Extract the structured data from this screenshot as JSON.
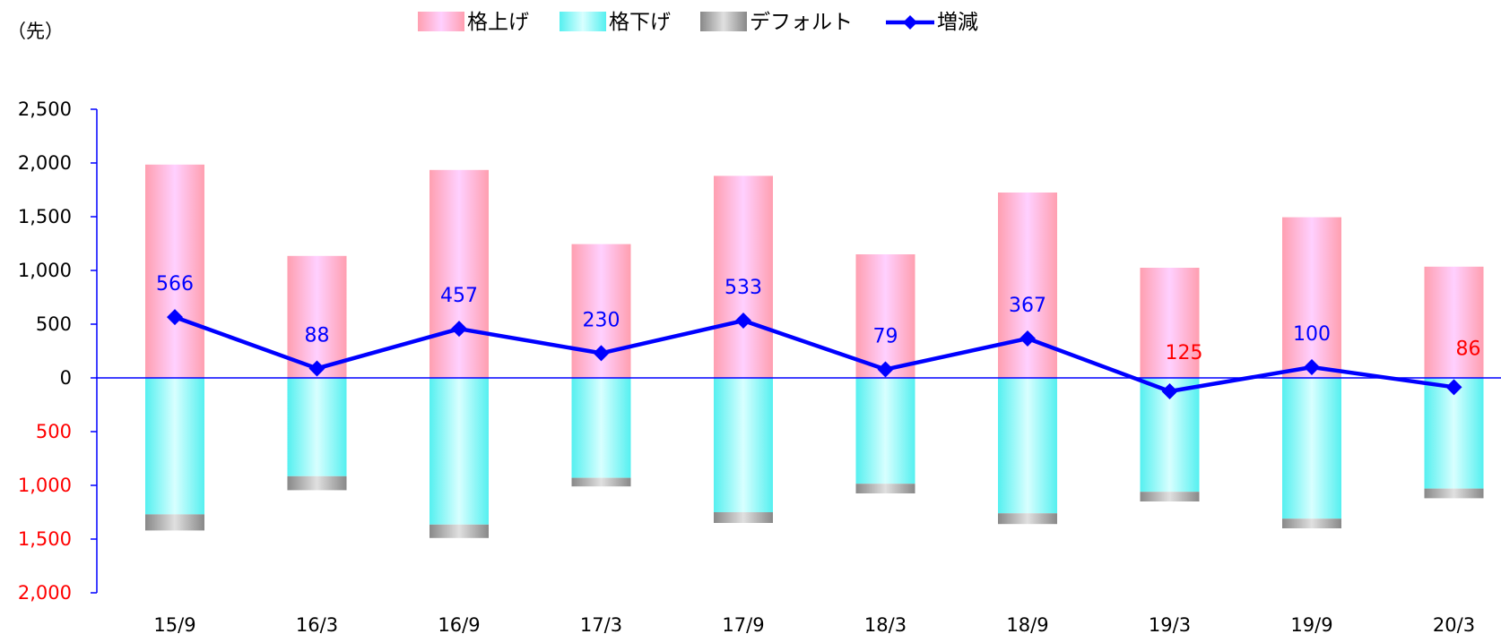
{
  "chart_data": {
    "type": "bar",
    "stacked": true,
    "unit_label": "（先）",
    "categories": [
      "15/9",
      "16/3",
      "16/9",
      "17/3",
      "17/9",
      "18/3",
      "18/9",
      "19/3",
      "19/9",
      "20/3"
    ],
    "series": [
      {
        "name": "格上げ",
        "kind": "bar",
        "values": [
          1985,
          1135,
          1935,
          1245,
          1880,
          1150,
          1725,
          1025,
          1495,
          1035
        ],
        "colors": [
          "#ff9fb0",
          "#ffd0ff"
        ]
      },
      {
        "name": "格下げ",
        "kind": "bar",
        "values": [
          -1270,
          -915,
          -1365,
          -930,
          -1250,
          -985,
          -1260,
          -1060,
          -1310,
          -1030
        ],
        "colors": [
          "#55f0f0",
          "#d8ffff"
        ]
      },
      {
        "name": "デフォルト",
        "kind": "bar",
        "values": [
          -150,
          -130,
          -125,
          -80,
          -100,
          -90,
          -100,
          -90,
          -90,
          -90
        ],
        "colors": [
          "#888888",
          "#e0e0e0"
        ]
      },
      {
        "name": "増減",
        "kind": "line",
        "values": [
          566,
          88,
          457,
          230,
          533,
          79,
          367,
          -125,
          100,
          -86
        ],
        "color": "#0000ff"
      }
    ],
    "data_labels": [
      "566",
      "88",
      "457",
      "230",
      "533",
      "79",
      "367",
      "125",
      "100",
      "86"
    ],
    "label_colors": {
      "positive": "#0000ff",
      "negative": "#ff0000"
    },
    "y_ticks": [
      {
        "value": 2500,
        "label": "2,500",
        "color": "#000000"
      },
      {
        "value": 2000,
        "label": "2,000",
        "color": "#000000"
      },
      {
        "value": 1500,
        "label": "1,500",
        "color": "#000000"
      },
      {
        "value": 1000,
        "label": "1,000",
        "color": "#000000"
      },
      {
        "value": 500,
        "label": "500",
        "color": "#000000"
      },
      {
        "value": 0,
        "label": "0",
        "color": "#000000"
      },
      {
        "value": -500,
        "label": "500",
        "color": "#ff0000"
      },
      {
        "value": -1000,
        "label": "1,000",
        "color": "#ff0000"
      },
      {
        "value": -1500,
        "label": "1,500",
        "color": "#ff0000"
      },
      {
        "value": -2000,
        "label": "2,000",
        "color": "#ff0000"
      }
    ],
    "ylim": [
      -2000,
      2500
    ],
    "axis_color": "#0000ff",
    "grid": false,
    "legend_position": "top-center",
    "title": "",
    "xlabel": "",
    "ylabel": ""
  }
}
